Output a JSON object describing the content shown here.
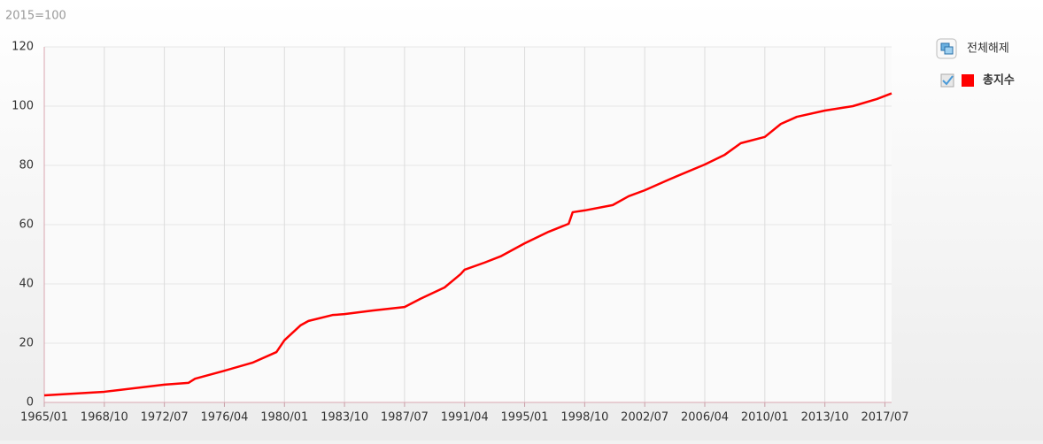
{
  "chart_data": {
    "type": "line",
    "unit_label": "2015=100",
    "legend_button": "전체해제",
    "x": [
      "1965/01",
      "1968/10",
      "1972/07",
      "1974/01",
      "1974/06",
      "1976/04",
      "1978/01",
      "1979/07",
      "1980/01",
      "1981/01",
      "1981/07",
      "1983/01",
      "1983/10",
      "1985/07",
      "1987/07",
      "1988/07",
      "1990/01",
      "1991/01",
      "1991/04",
      "1992/07",
      "1993/07",
      "1995/01",
      "1996/07",
      "1997/10",
      "1998/01",
      "1998/10",
      "2000/07",
      "2001/07",
      "2002/07",
      "2004/01",
      "2006/04",
      "2007/07",
      "2008/07",
      "2010/01",
      "2011/01",
      "2012/01",
      "2013/10",
      "2015/07",
      "2017/01",
      "2017/12"
    ],
    "series": [
      {
        "name": "총지수",
        "color": "#ff0000",
        "values": [
          2.4,
          3.6,
          6.0,
          6.6,
          8.0,
          10.7,
          13.4,
          17.0,
          21.0,
          26.0,
          27.5,
          29.5,
          29.8,
          31.0,
          32.2,
          35.0,
          38.8,
          43.3,
          44.8,
          47.2,
          49.3,
          53.7,
          57.6,
          60.3,
          64.2,
          64.8,
          66.6,
          69.6,
          71.6,
          75.2,
          80.3,
          83.6,
          87.5,
          89.6,
          94.0,
          96.4,
          98.5,
          100.0,
          102.4,
          104.3
        ]
      }
    ],
    "xlim": [
      "1965/01",
      "2017/12"
    ],
    "xticks": [
      "1965/01",
      "1968/10",
      "1972/07",
      "1976/04",
      "1980/01",
      "1983/10",
      "1987/07",
      "1991/04",
      "1995/01",
      "1998/10",
      "2002/07",
      "2006/04",
      "2010/01",
      "2013/10",
      "2017/07"
    ],
    "ylim": [
      0,
      120
    ],
    "yticks": [
      0,
      20,
      40,
      60,
      80,
      100,
      120
    ],
    "grid": true,
    "legend": "top-right"
  }
}
